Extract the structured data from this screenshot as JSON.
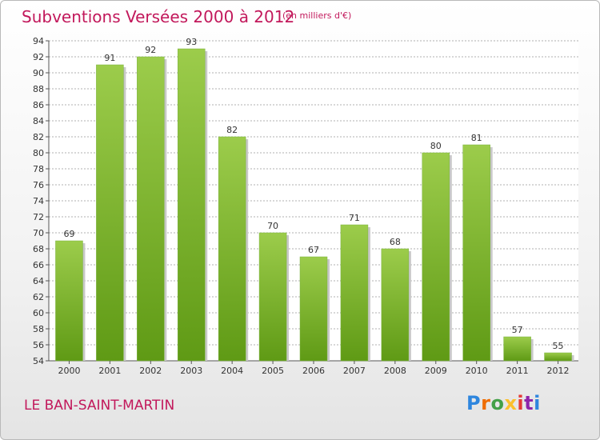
{
  "chart_data": {
    "type": "bar",
    "title": "Subventions Versées 2000 à 2012",
    "subtitle": "(en milliers d'€)",
    "categories": [
      "2000",
      "2001",
      "2002",
      "2003",
      "2004",
      "2005",
      "2006",
      "2007",
      "2008",
      "2009",
      "2010",
      "2011",
      "2012"
    ],
    "values": [
      69,
      91,
      92,
      93,
      82,
      70,
      67,
      71,
      68,
      80,
      81,
      57,
      55
    ],
    "ylim": [
      54,
      94
    ],
    "yticks": [
      54,
      56,
      58,
      60,
      62,
      64,
      66,
      68,
      70,
      72,
      74,
      76,
      78,
      80,
      82,
      84,
      86,
      88,
      90,
      92,
      94
    ],
    "grid": true,
    "xlabel": "",
    "ylabel": "",
    "colors": {
      "bar_top": "#9ccc4b",
      "bar_bottom": "#5f9a15",
      "title": "#c2185b",
      "grid": "#b0b0b0"
    }
  },
  "commune": "LE BAN-SAINT-MARTIN",
  "logo": {
    "text": "Proxiti"
  }
}
